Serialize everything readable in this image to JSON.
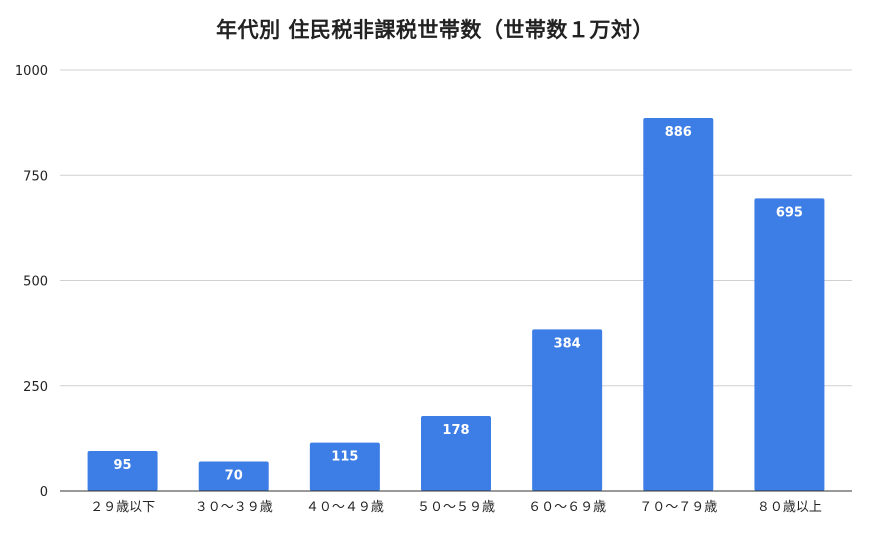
{
  "chart_data": {
    "type": "bar",
    "title": "年代別 住民税非課税世帯数（世帯数１万対）",
    "xlabel": "",
    "ylabel": "",
    "categories": [
      "２９歳以下",
      "３０〜３９歳",
      "４０〜４９歳",
      "５０〜５９歳",
      "６０〜６９歳",
      "７０〜７９歳",
      "８０歳以上"
    ],
    "values": [
      95,
      70,
      115,
      178,
      384,
      886,
      695
    ],
    "ylim": [
      0,
      1000
    ],
    "yticks": [
      0,
      250,
      500,
      750,
      1000
    ],
    "grid": true,
    "legend": "none",
    "data_labels": true,
    "colors": {
      "bar": "#3d7ee6",
      "grid": "#d0d0d0",
      "axis": "#333333",
      "text": "#222222",
      "data_label": "#ffffff"
    }
  }
}
